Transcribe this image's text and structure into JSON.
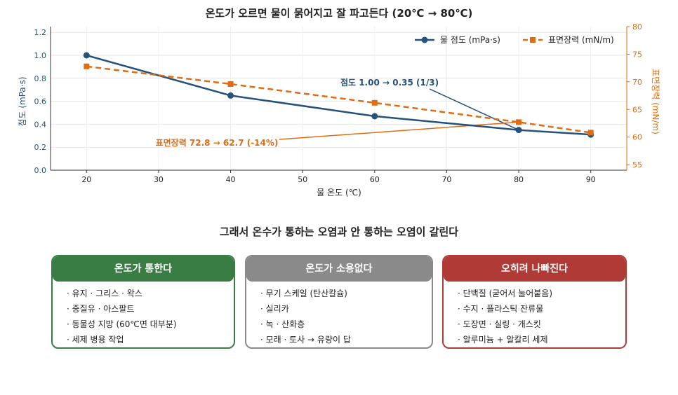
{
  "chart_data": {
    "type": "line",
    "title": "온도가 오르면 물이 묽어지고 잘 파고든다  (20℃ → 80℃)",
    "xlabel": "물 온도 (℃)",
    "ylabel": "점도 (mPa·s)",
    "ylabel_right": "표면장력 (mN/m)",
    "x": [
      20,
      40,
      60,
      80,
      90
    ],
    "xticks": [
      20,
      30,
      40,
      50,
      60,
      70,
      80,
      90
    ],
    "xlim": [
      15,
      95
    ],
    "ylim": [
      0,
      1.25
    ],
    "yticks": [
      0.0,
      0.2,
      0.4,
      0.6,
      0.8,
      1.0,
      1.2
    ],
    "y2lim": [
      54,
      80
    ],
    "y2ticks": [
      55,
      60,
      65,
      70,
      75,
      80
    ],
    "grid": true,
    "legend_position": "top-right",
    "series": [
      {
        "name": "물 점도 (mPa·s)",
        "axis": "left",
        "style": "solid",
        "marker": "circle",
        "color": "#24527a",
        "values": [
          1.0,
          0.65,
          0.47,
          0.35,
          0.31
        ]
      },
      {
        "name": "표면장력 (mN/m)",
        "axis": "right",
        "style": "dashed",
        "marker": "square",
        "color": "#e06c14",
        "values": [
          72.8,
          69.6,
          66.2,
          62.7,
          60.8
        ]
      }
    ],
    "annotations": [
      {
        "text": "점도 1.00 → 0.35 (1/3)",
        "color": "#24527a",
        "target_series": 0,
        "target_x": 80
      },
      {
        "text": "표면장력 72.8 → 62.7 (-14%)",
        "color": "#e06c14",
        "target_series": 1,
        "target_x": 80
      }
    ]
  },
  "section_title": "그래서 온수가 통하는 오염과 안 통하는 오염이 갈린다",
  "cards": [
    {
      "title": "온도가 통한다",
      "color": "#3a7d44",
      "items": [
        "· 유지 · 그리스 · 왁스",
        "· 중질유 · 아스팔트",
        "· 동물성 지방 (60℃면 대부분)",
        "· 세제 병용 작업"
      ]
    },
    {
      "title": "온도가 소용없다",
      "color": "#8a8a8a",
      "items": [
        "· 무기 스케일 (탄산칼슘)",
        "· 실리카",
        "· 녹 · 산화층",
        "· 모래 · 토사 → 유량이 답"
      ]
    },
    {
      "title": "오히려 나빠진다",
      "color": "#b03a35",
      "items": [
        "· 단백질 (굳어서 눌어붙음)",
        "· 수지 · 플라스틱 잔류물",
        "· 도장면 · 실링 · 개스킷",
        "· 알루미늄 + 알칼리 세제"
      ]
    }
  ]
}
